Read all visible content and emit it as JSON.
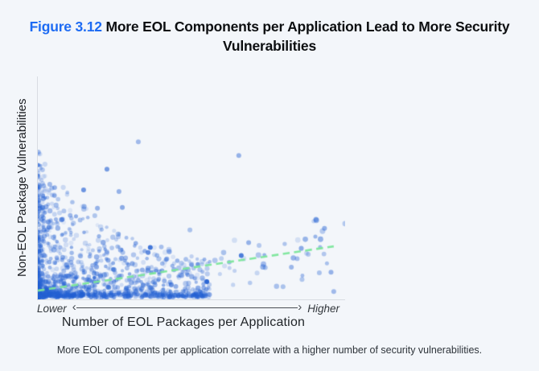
{
  "figure": {
    "label": "Figure 3.12",
    "label_color": "#1d6bf3",
    "title": "More EOL Components per Application Lead to More Security Vulnerabilities"
  },
  "caption": {
    "text": "More EOL components per application correlate with a higher number of security vulnerabilities."
  },
  "chart_data": {
    "type": "scatter",
    "title": "More EOL Components per Application Lead to More Security Vulnerabilities",
    "xlabel": "Number of EOL Packages per Application",
    "ylabel": "Non-EOL Package Vulnerabilities",
    "x_axis": {
      "qualitative": true,
      "low_label": "Lower",
      "high_label": "Higher",
      "ticks": []
    },
    "y_axis": {
      "qualitative": true,
      "ticks": []
    },
    "grid": false,
    "legend": false,
    "background": "#f3f6fa",
    "point_color": "#2360d2",
    "axis_color": "#d8dce2",
    "arrow_color": "#4a4f55",
    "icons": {
      "arrow_left_head": "‹",
      "arrow_right_head": "›"
    },
    "trend_line": {
      "style": "dashed",
      "color": "#7ce69b",
      "x0": 0.0,
      "y0": 0.036,
      "x1": 0.963,
      "y1": 0.236,
      "slope": "positive",
      "description": "Positive correlation: more EOL packages per application, more non-EOL package vulnerabilities"
    },
    "distribution": {
      "coords": "normalized 0-1; x from left axis, y up from bottom axis",
      "seed": 7,
      "cluster_count": 1400,
      "x_power": 2.2,
      "x_span": 0.56,
      "h_base": 0.13,
      "h_amp": 0.52,
      "h_decay": 4.2,
      "y_power": 3.4,
      "tail_count": 55,
      "tail_x_min": 0.45,
      "tail_x_max": 1.0,
      "summary": "Dense cloud of semi-transparent blue points hugging the bottom-left, thinning toward the right; sparse points follow the rising trend line to the far right"
    },
    "outliers": [
      [
        0.327,
        0.708,
        0.4
      ],
      [
        0.654,
        0.646,
        0.45
      ],
      [
        0.225,
        0.585,
        0.6
      ],
      [
        0.039,
        0.516,
        0.4
      ],
      [
        0.149,
        0.491,
        0.65
      ],
      [
        0.264,
        0.484,
        0.45
      ],
      [
        0.018,
        0.451,
        0.5
      ],
      [
        0.194,
        0.408,
        0.45
      ],
      [
        0.275,
        0.412,
        0.5
      ],
      [
        0.016,
        0.412,
        0.55
      ],
      [
        0.495,
        0.31,
        0.35
      ],
      [
        0.686,
        0.253,
        0.45
      ],
      [
        0.662,
        0.195,
        0.8
      ],
      [
        0.55,
        0.076,
        0.95
      ],
      [
        0.366,
        0.231,
        0.85
      ],
      [
        0.359,
        0.208,
        0.7
      ],
      [
        0.798,
        0.054,
        0.35
      ],
      [
        0.916,
        0.116,
        0.35
      ],
      [
        0.963,
        0.032,
        0.4
      ],
      [
        0.88,
        0.2,
        0.3
      ],
      [
        0.74,
        0.14,
        0.35
      ],
      [
        0.72,
        0.24,
        0.3
      ]
    ]
  }
}
